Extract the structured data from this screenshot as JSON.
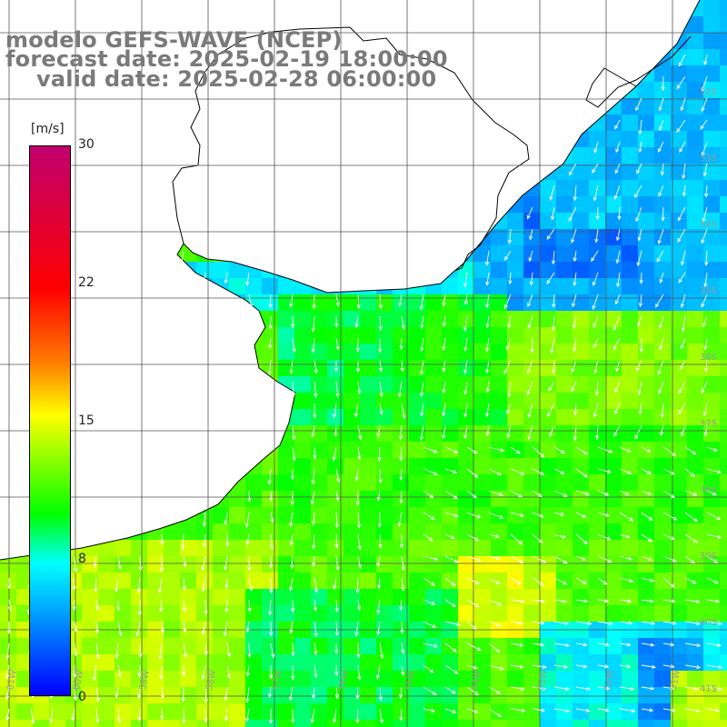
{
  "header": {
    "line1": "modelo GEFS-WAVE (NCEP)",
    "line2": "forecast date: 2025-02-19 18:00:00",
    "line3": "valid date: 2025-02-28 06:00:00"
  },
  "colorbar": {
    "unit": "[m/s]",
    "ticks": [
      "30",
      "22",
      "15",
      "8",
      "0"
    ],
    "range": [
      0,
      30
    ],
    "colors": [
      "#c0006e",
      "#ff0000",
      "#ff7800",
      "#ffff00",
      "#00ff00",
      "#00ffff",
      "#0080ff",
      "#0000ff"
    ]
  },
  "map": {
    "lat_labels": [
      "32S",
      "33S",
      "34S",
      "35S",
      "36S",
      "37S",
      "38S",
      "39S",
      "40S",
      "41S"
    ],
    "lon_labels": [
      "61W",
      "60W",
      "59W",
      "58W",
      "57W",
      "56W",
      "55W",
      "54W",
      "53W",
      "52W",
      "51W"
    ],
    "land_color": "#ffffff",
    "coast_color": "#000000",
    "grid_color": "#555555"
  }
}
